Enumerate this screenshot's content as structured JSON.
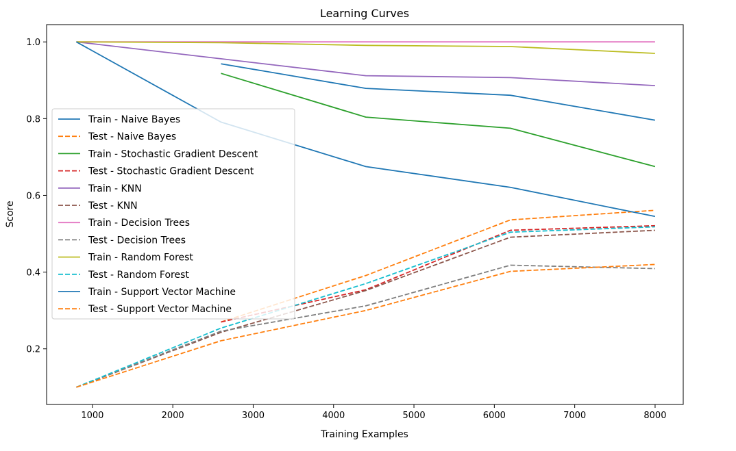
{
  "chart_data": {
    "type": "line",
    "title": "Learning Curves",
    "xlabel": "Training Examples",
    "ylabel": "Score",
    "xlim": [
      430,
      8350
    ],
    "ylim": [
      0.055,
      1.045
    ],
    "xticks": [
      1000,
      2000,
      3000,
      4000,
      5000,
      6000,
      7000,
      8000
    ],
    "yticks": [
      0.2,
      0.4,
      0.6,
      0.8,
      1.0
    ],
    "ytick_labels": [
      "0.2",
      "0.4",
      "0.6",
      "0.8",
      "1.0"
    ],
    "grid": false,
    "legend_placement": "center-left",
    "series": [
      {
        "name": "Train - Naive Bayes",
        "color": "#1f77b4",
        "style": "solid",
        "x": [
          2600,
          4400,
          6200,
          8000
        ],
        "y": [
          0.943,
          0.879,
          0.861,
          0.796
        ]
      },
      {
        "name": "Test - Naive Bayes",
        "color": "#ff7f0e",
        "style": "dashed",
        "x": [
          2600,
          4400,
          6200,
          8000
        ],
        "y": [
          0.27,
          0.391,
          0.536,
          0.561
        ]
      },
      {
        "name": "Train - Stochastic Gradient Descent",
        "color": "#2ca02c",
        "style": "solid",
        "x": [
          2600,
          4400,
          6200,
          8000
        ],
        "y": [
          0.918,
          0.804,
          0.775,
          0.675
        ]
      },
      {
        "name": "Test - Stochastic Gradient Descent",
        "color": "#d62728",
        "style": "dashed",
        "x": [
          2600,
          4400,
          6200,
          8000
        ],
        "y": [
          0.27,
          0.354,
          0.509,
          0.521
        ]
      },
      {
        "name": "Train - KNN",
        "color": "#9467bd",
        "style": "solid",
        "x": [
          800,
          2600,
          4400,
          6200,
          8000
        ],
        "y": [
          1.0,
          0.956,
          0.912,
          0.907,
          0.886
        ]
      },
      {
        "name": "Test - KNN",
        "color": "#8c564b",
        "style": "dashed",
        "x": [
          800,
          2600,
          4400,
          6200,
          8000
        ],
        "y": [
          0.1,
          0.243,
          0.352,
          0.491,
          0.509
        ]
      },
      {
        "name": "Train - Decision Trees",
        "color": "#e377c2",
        "style": "solid",
        "x": [
          800,
          2600,
          4400,
          6200,
          8000
        ],
        "y": [
          1.0,
          1.0,
          1.0,
          1.0,
          1.0
        ]
      },
      {
        "name": "Test - Decision Trees",
        "color": "#7f7f7f",
        "style": "dashed",
        "x": [
          800,
          2600,
          4400,
          6200,
          8000
        ],
        "y": [
          0.1,
          0.246,
          0.312,
          0.418,
          0.409
        ]
      },
      {
        "name": "Train - Random Forest",
        "color": "#bcbd22",
        "style": "solid",
        "x": [
          800,
          2600,
          4400,
          6200,
          8000
        ],
        "y": [
          1.0,
          0.998,
          0.991,
          0.988,
          0.97
        ]
      },
      {
        "name": "Test - Random Forest",
        "color": "#17becf",
        "style": "dashed",
        "x": [
          800,
          2600,
          4400,
          6200,
          8000
        ],
        "y": [
          0.1,
          0.254,
          0.37,
          0.504,
          0.518
        ]
      },
      {
        "name": "Train - Support Vector Machine",
        "color": "#1f77b4",
        "style": "solid",
        "x": [
          800,
          2600,
          4400,
          6200,
          8000
        ],
        "y": [
          1.0,
          0.791,
          0.675,
          0.621,
          0.545
        ]
      },
      {
        "name": "Test - Support Vector Machine",
        "color": "#ff7f0e",
        "style": "dashed",
        "x": [
          800,
          2600,
          4400,
          6200,
          8000
        ],
        "y": [
          0.1,
          0.221,
          0.3,
          0.402,
          0.42
        ]
      }
    ]
  }
}
